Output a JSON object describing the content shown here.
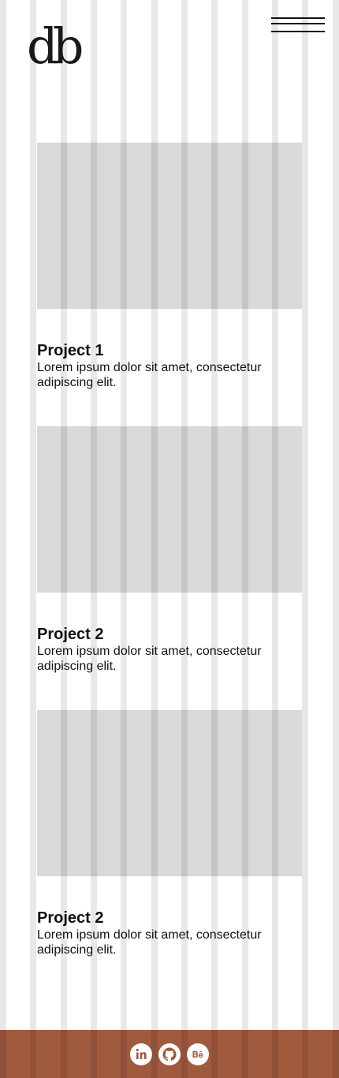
{
  "header": {
    "logo_text": "db",
    "menu_icon": "hamburger-menu-icon"
  },
  "projects": [
    {
      "title": "Project 1",
      "description": "Lorem ipsum dolor sit amet, consectetur adipiscing elit."
    },
    {
      "title": "Project 2",
      "description": "Lorem ipsum dolor sit amet, consectetur adipiscing elit."
    },
    {
      "title": "Project 2",
      "description": "Lorem ipsum dolor sit amet, consectetur adipiscing elit."
    }
  ],
  "footer": {
    "social_icons": [
      "linkedin-icon",
      "github-icon",
      "behance-icon"
    ],
    "background_color": "#a05a3e"
  },
  "colors": {
    "image_placeholder": "#d9d9d9",
    "text": "#111111"
  }
}
